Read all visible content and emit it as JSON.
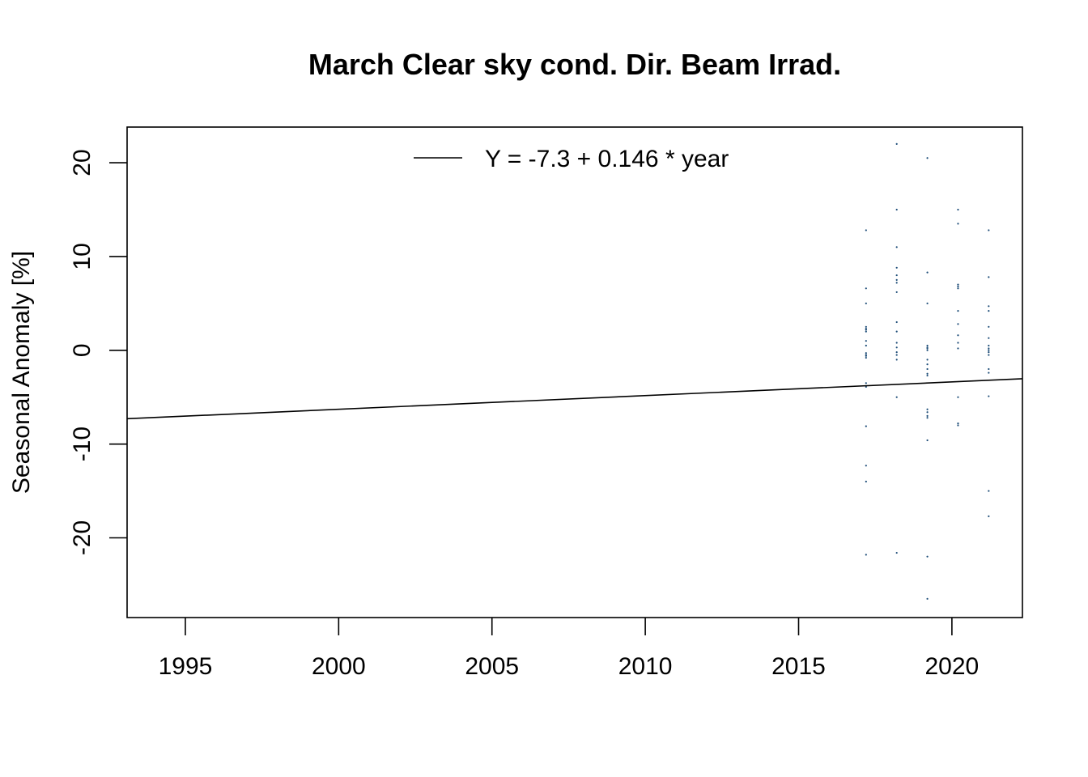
{
  "chart_data": {
    "type": "scatter",
    "title": "March Clear sky cond. Dir. Beam Irrad.",
    "xlabel": "",
    "ylabel": "Seasonal Anomaly [%]",
    "xlim": [
      1993.1,
      2022.3
    ],
    "ylim": [
      -28.5,
      23.8
    ],
    "x_ticks": [
      1995,
      2000,
      2005,
      2010,
      2015,
      2020
    ],
    "y_ticks": [
      -20,
      -10,
      0,
      10,
      20
    ],
    "grid": false,
    "legend": {
      "position": "top-center",
      "entries": [
        {
          "label": "Y = -7.3 + 0.146 * year",
          "style": "line"
        }
      ]
    },
    "trend_line": {
      "intercept": -7.3,
      "slope": 0.146,
      "origin_year": 1993.1
    },
    "point_color": "#1f4e79",
    "line_color": "#000000",
    "series": [
      {
        "x": [
          2017.2,
          2017.2,
          2017.2,
          2017.2,
          2017.2,
          2017.2,
          2017.2,
          2017.2,
          2017.2,
          2017.2,
          2017.2,
          2017.2,
          2017.2,
          2017.2,
          2017.2,
          2017.2,
          2017.2,
          2017.2,
          2017.2,
          2018.2,
          2018.2,
          2018.2,
          2018.2,
          2018.2,
          2018.2,
          2018.2,
          2018.2,
          2018.2,
          2018.2,
          2018.2,
          2018.2,
          2018.2,
          2018.2,
          2018.2,
          2018.2,
          2018.2,
          2019.2,
          2019.2,
          2019.2,
          2019.2,
          2019.2,
          2019.2,
          2019.2,
          2019.2,
          2019.2,
          2019.2,
          2019.2,
          2019.2,
          2019.2,
          2019.2,
          2019.2,
          2019.2,
          2019.2,
          2019.2,
          2019.2,
          2020.2,
          2020.2,
          2020.2,
          2020.2,
          2020.2,
          2020.2,
          2020.2,
          2020.2,
          2020.2,
          2020.2,
          2020.2,
          2020.2,
          2020.2,
          2021.2,
          2021.2,
          2021.2,
          2021.2,
          2021.2,
          2021.2,
          2021.2,
          2021.2,
          2021.2,
          2021.2,
          2021.2,
          2021.2,
          2021.2,
          2021.2,
          2021.2,
          2021.2
        ],
        "y": [
          12.8,
          6.6,
          5.0,
          2.5,
          2.2,
          2.0,
          1.0,
          0.5,
          -0.3,
          -0.5,
          -0.8,
          -3.5,
          -3.9,
          -8.1,
          -12.3,
          -14.0,
          -21.8,
          2.3,
          -0.6,
          22.0,
          15.0,
          11.0,
          8.8,
          8.0,
          7.5,
          7.2,
          6.2,
          3.0,
          2.0,
          0.8,
          -0.2,
          -0.5,
          -1.0,
          -5.0,
          -21.6,
          0.3,
          20.5,
          8.3,
          5.0,
          0.5,
          0.2,
          0.0,
          -1.0,
          -1.5,
          -2.0,
          -2.5,
          -2.7,
          -6.3,
          -6.6,
          -7.0,
          -7.2,
          -9.6,
          -22.0,
          -26.5,
          0.3,
          15.0,
          13.5,
          7.0,
          6.6,
          4.2,
          2.8,
          1.6,
          0.8,
          0.2,
          -5.0,
          -7.8,
          -8.0,
          6.8,
          12.8,
          7.8,
          4.7,
          4.2,
          2.5,
          1.3,
          0.5,
          0.2,
          0.0,
          -0.2,
          -0.5,
          -2.0,
          -2.4,
          -4.9,
          -15.0,
          -17.7
        ]
      }
    ]
  }
}
